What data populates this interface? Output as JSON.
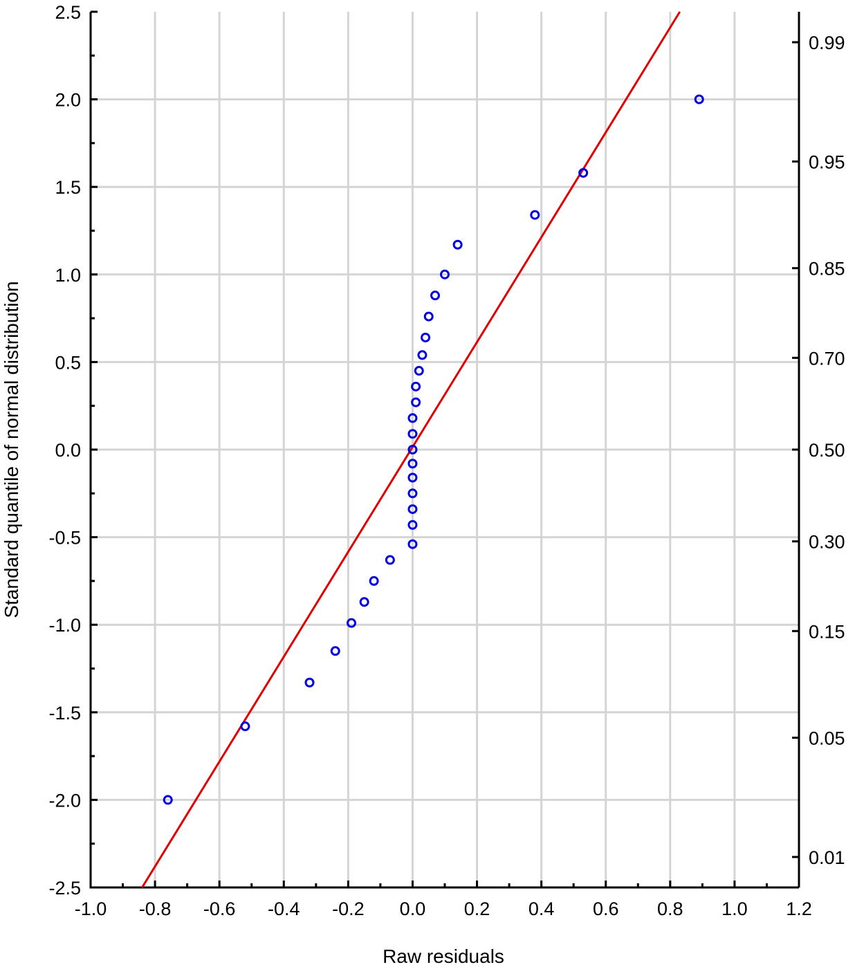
{
  "chart_data": {
    "type": "scatter",
    "xlabel": "Raw residuals",
    "ylabel": "Standard quantile of normal distribution",
    "xlim": [
      -1.0,
      1.2
    ],
    "ylim": [
      -2.5,
      2.5
    ],
    "xticks": [
      "-1.0",
      "-0.8",
      "-0.6",
      "-0.4",
      "-0.2",
      "0.0",
      "0.2",
      "0.4",
      "0.6",
      "0.8",
      "1.0",
      "1.2"
    ],
    "yticks": [
      "-2.5",
      "-2.0",
      "-1.5",
      "-1.0",
      "-0.5",
      "0.0",
      "0.5",
      "1.0",
      "1.5",
      "2.0",
      "2.5"
    ],
    "right_axis_ticks": [
      "0.01",
      "0.05",
      "0.15",
      "0.30",
      "0.50",
      "0.70",
      "0.85",
      "0.95",
      "0.99"
    ],
    "grid": true,
    "colors": {
      "points": "#0000e0",
      "line": "#e00000",
      "grid": "#d4d4d4"
    },
    "points": [
      [
        -0.76,
        -2.0
      ],
      [
        -0.52,
        -1.58
      ],
      [
        -0.32,
        -1.33
      ],
      [
        -0.24,
        -1.15
      ],
      [
        -0.19,
        -0.99
      ],
      [
        -0.15,
        -0.87
      ],
      [
        -0.12,
        -0.75
      ],
      [
        -0.07,
        -0.63
      ],
      [
        0.0,
        -0.54
      ],
      [
        0.0,
        -0.43
      ],
      [
        0.0,
        -0.34
      ],
      [
        0.0,
        -0.25
      ],
      [
        0.0,
        -0.16
      ],
      [
        0.0,
        -0.08
      ],
      [
        0.0,
        0.0
      ],
      [
        0.0,
        0.09
      ],
      [
        0.0,
        0.18
      ],
      [
        0.01,
        0.27
      ],
      [
        0.01,
        0.36
      ],
      [
        0.02,
        0.45
      ],
      [
        0.03,
        0.54
      ],
      [
        0.04,
        0.64
      ],
      [
        0.05,
        0.76
      ],
      [
        0.07,
        0.88
      ],
      [
        0.1,
        1.0
      ],
      [
        0.14,
        1.17
      ],
      [
        0.38,
        1.34
      ],
      [
        0.53,
        1.58
      ],
      [
        0.89,
        2.0
      ]
    ],
    "fit_line": [
      [
        -0.84,
        -2.5
      ],
      [
        0.83,
        2.5
      ]
    ]
  }
}
